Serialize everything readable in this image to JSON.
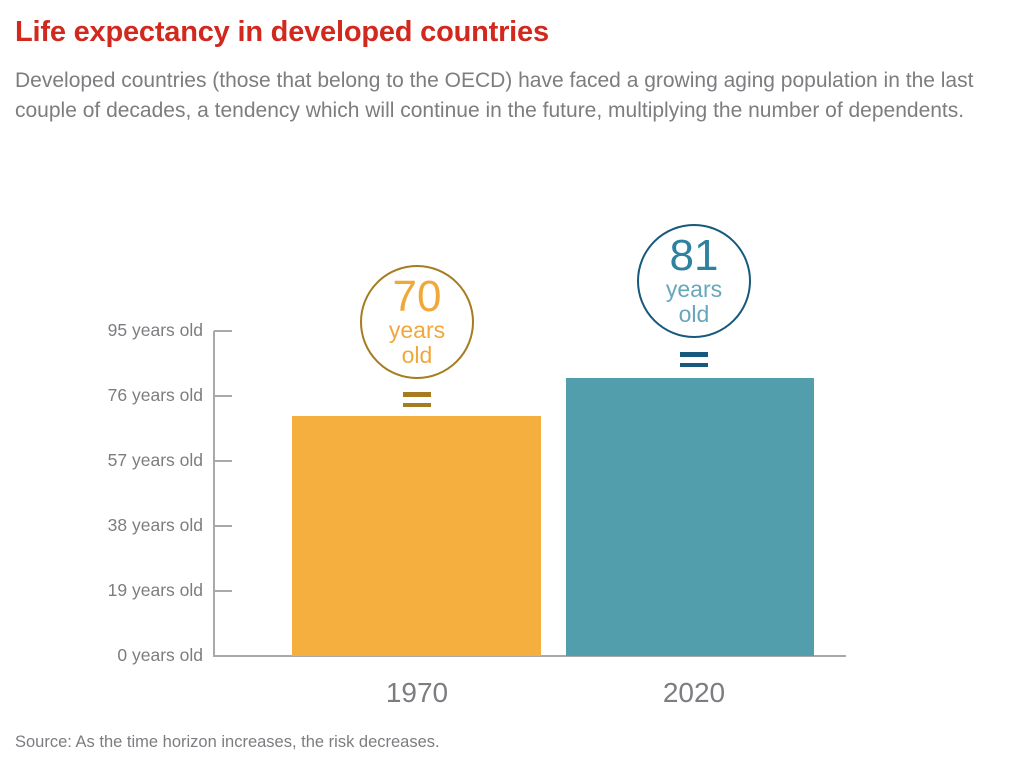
{
  "title": "Life expectancy in developed countries",
  "subtitle": "Developed countries (those that belong to the OECD) have faced a growing aging population in the last couple of decades, a tendency which will continue in the future, multiplying the number of dependents.",
  "source_note": "Source: As the time horizon increases, the risk decreases.",
  "colors": {
    "title_red": "#d2291e",
    "body_gray": "#7c7d80",
    "axis_gray": "#a7a9ac",
    "bar_1970": "#f5af3e",
    "bar_2020": "#539eac",
    "circle_border_1970": "#a57c20",
    "circle_text_1970": "#f1a83a",
    "circle_border_2020": "#16597c",
    "value_text_2020": "#2e81a1",
    "unit_text_2020": "#66a7bb"
  },
  "chart_data": {
    "type": "bar",
    "title": "Life expectancy in developed countries",
    "categories": [
      "1970",
      "2020"
    ],
    "values": [
      70,
      81
    ],
    "value_unit": "years old",
    "ylabel": "",
    "xlabel": "",
    "ylim": [
      0,
      95
    ],
    "grid": false,
    "legend": "none",
    "ytick_values_top_to_bottom": [
      95,
      76,
      57,
      38,
      19,
      0
    ],
    "ytick_labels": [
      "95 years old",
      "76 years old",
      "57 years old",
      "38 years old",
      "19 years old",
      "0 years old"
    ],
    "bar_colors": [
      "#f5af3e",
      "#539eac"
    ],
    "annotations": [
      {
        "value": "70",
        "unit_line1": "years",
        "unit_line2": "old"
      },
      {
        "value": "81",
        "unit_line1": "years",
        "unit_line2": "old"
      }
    ]
  }
}
